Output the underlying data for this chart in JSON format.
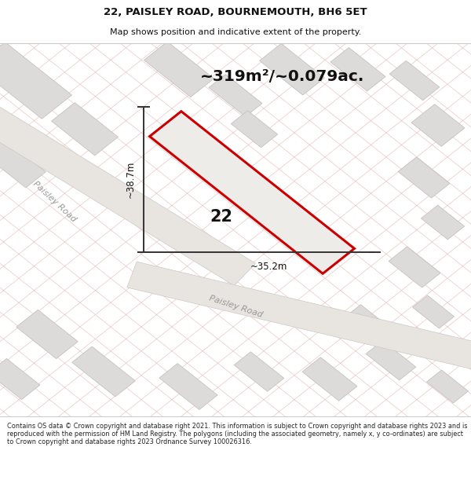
{
  "title_line1": "22, PAISLEY ROAD, BOURNEMOUTH, BH6 5ET",
  "title_line2": "Map shows position and indicative extent of the property.",
  "area_text": "~319m²/~0.079ac.",
  "plot_number": "22",
  "dim_vertical": "~38.7m",
  "dim_horizontal": "~35.2m",
  "road_label": "Paisley Road",
  "road_label2": "Paisley Road",
  "footer_text": "Contains OS data © Crown copyright and database right 2021. This information is subject to Crown copyright and database rights 2023 and is reproduced with the permission of HM Land Registry. The polygons (including the associated geometry, namely x, y co-ordinates) are subject to Crown copyright and database rights 2023 Ordnance Survey 100026316.",
  "map_bg": "#f2f0ee",
  "block_color": "#dddbd9",
  "block_edge": "#c5c3c1",
  "hatch_line_color": "#e0a8a8",
  "road_fill": "#e8e4e0",
  "road_edge": "#ccc9c6",
  "plot_fill": "#eeece9",
  "plot_edge": "#cc0000",
  "dim_color": "#333333",
  "text_color": "#111111",
  "road_text_color": "#999999",
  "white": "#ffffff"
}
